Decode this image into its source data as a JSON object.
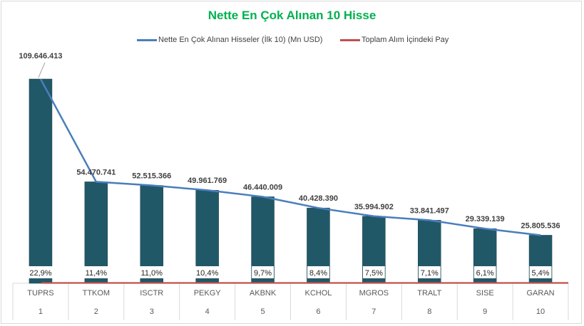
{
  "chart_data": {
    "type": "bar",
    "title": "Nette En Çok Alınan 10 Hisse",
    "xlabel": "",
    "ylabel": "",
    "legend_position": "top",
    "categories": [
      "TUPRS",
      "TTKOM",
      "ISCTR",
      "PEKGY",
      "AKBNK",
      "KCHOL",
      "MGROS",
      "TRALT",
      "SISE",
      "GARAN"
    ],
    "ranks": [
      "1",
      "2",
      "3",
      "4",
      "5",
      "6",
      "7",
      "8",
      "9",
      "10"
    ],
    "series": [
      {
        "name": "Nette En Çok Alınan Hisseler (İlk 10) (Mn USD)",
        "kind": "bar+line",
        "color": "#4A7EBB",
        "bar_color": "#215868",
        "values": [
          109646413,
          54470741,
          52515366,
          49961769,
          46440009,
          40428390,
          35994902,
          33841497,
          29339139,
          25805536
        ],
        "labels": [
          "109.646.413",
          "54.470.741",
          "52.515.366",
          "49.961.769",
          "46.440.009",
          "40.428.390",
          "35.994.902",
          "33.841.497",
          "29.339.139",
          "25.805.536"
        ]
      },
      {
        "name": "Toplam Alım İçindeki Pay",
        "kind": "line",
        "color": "#C0504D",
        "values": [
          22.9,
          11.4,
          11.0,
          10.4,
          9.7,
          8.4,
          7.5,
          7.1,
          6.1,
          5.4
        ],
        "labels": [
          "22,9%",
          "11,4%",
          "11,0%",
          "10,4%",
          "9,7%",
          "8,4%",
          "7,5%",
          "7,1%",
          "6,1%",
          "5,4%"
        ]
      }
    ]
  }
}
